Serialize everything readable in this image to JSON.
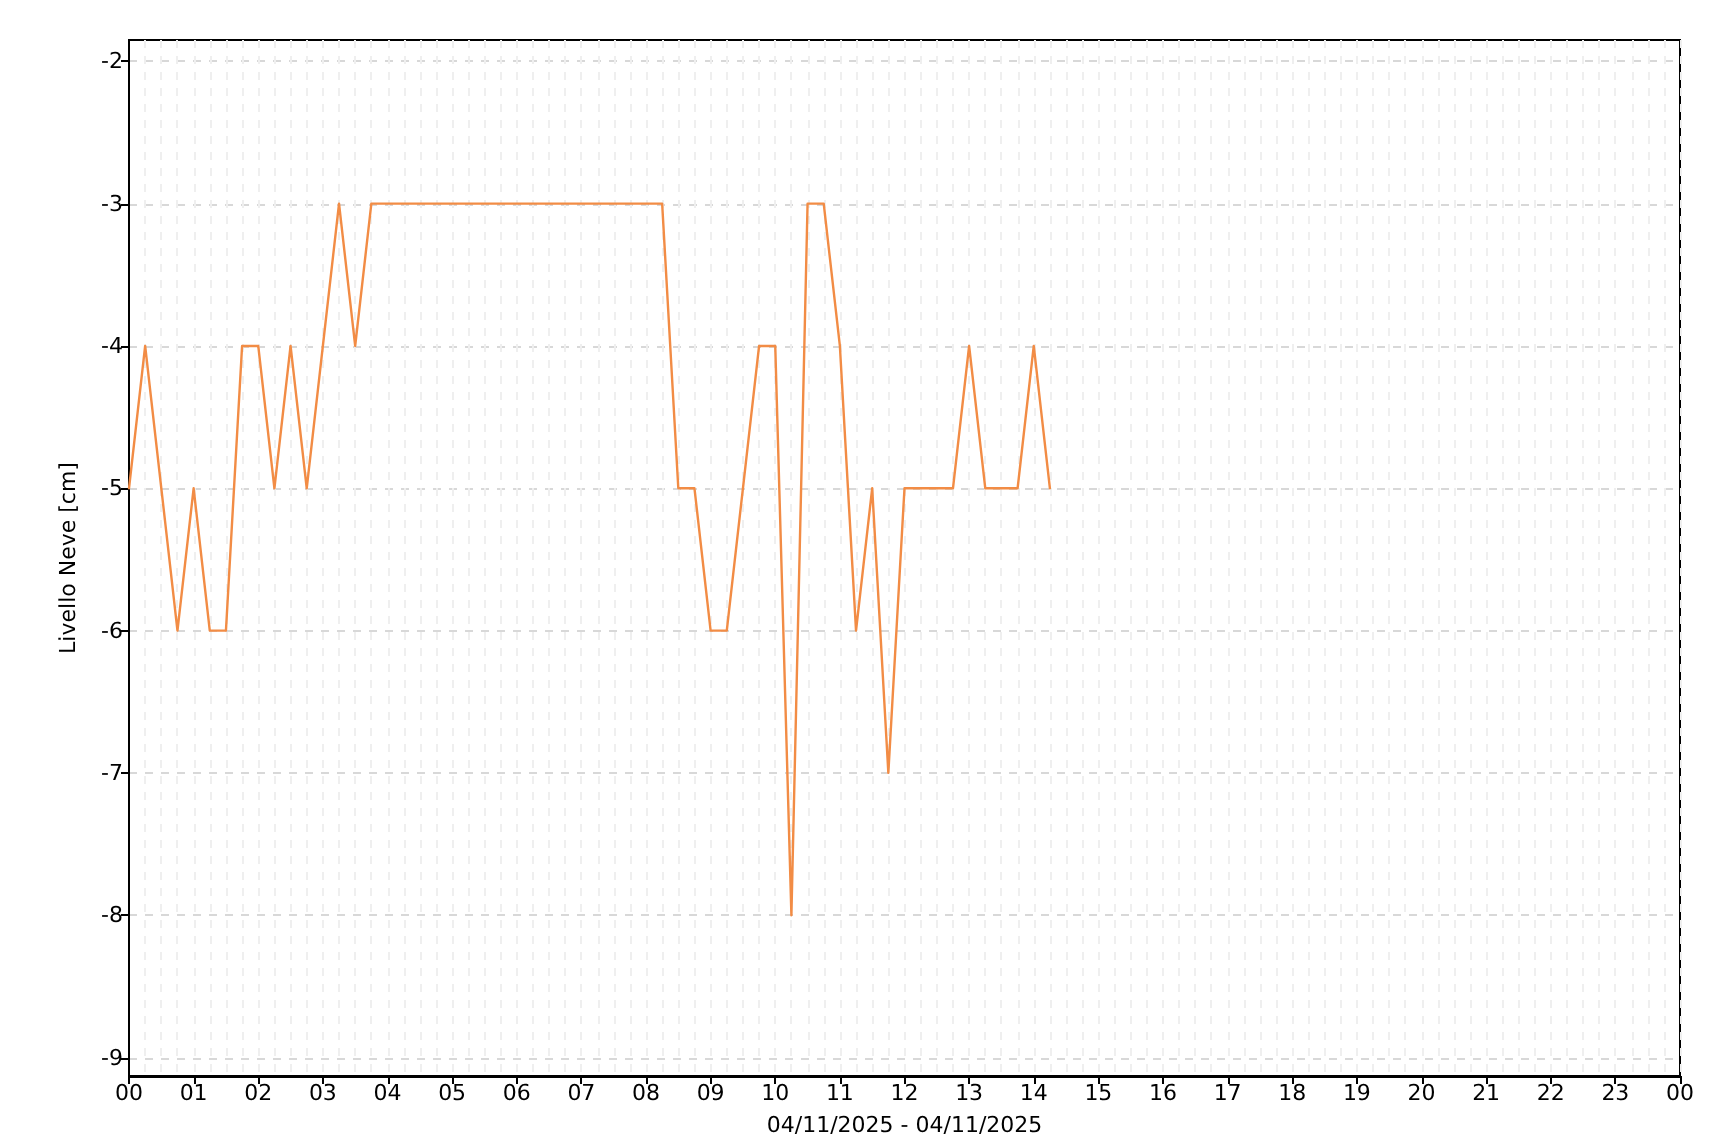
{
  "chart_data": {
    "type": "line",
    "xlabel": "04/11/2025 - 04/11/2025",
    "ylabel": "Livello Neve [cm]",
    "x": [
      0,
      0.25,
      0.5,
      0.75,
      1,
      1.25,
      1.5,
      1.75,
      2,
      2.25,
      2.5,
      2.75,
      3,
      3.25,
      3.5,
      3.75,
      4,
      4.25,
      4.5,
      4.75,
      5,
      5.25,
      5.5,
      5.75,
      6,
      6.25,
      6.5,
      6.75,
      7,
      7.25,
      7.5,
      7.75,
      8,
      8.25,
      8.5,
      8.75,
      9,
      9.25,
      9.5,
      9.75,
      10,
      10.25,
      10.5,
      10.75,
      11,
      11.25,
      11.5,
      11.75,
      12,
      12.25,
      12.5,
      12.75,
      13,
      13.25,
      13.5,
      13.75,
      14,
      14.25
    ],
    "series": [
      {
        "color": "#f28c45",
        "values": [
          -5,
          -4,
          -5,
          -6,
          -5,
          -6,
          -6,
          -4,
          -4,
          -5,
          -4,
          -5,
          -4,
          -3,
          -4,
          -3,
          -3,
          -3,
          -3,
          -3,
          -3,
          -3,
          -3,
          -3,
          -3,
          -3,
          -3,
          -3,
          -3,
          -3,
          -3,
          -3,
          -3,
          -3,
          -5,
          -5,
          -6,
          -6,
          -5,
          -4,
          -4,
          -8,
          -3,
          -3,
          -4,
          -6,
          -5,
          -7,
          -5,
          -5,
          -5,
          -5,
          -4,
          -5,
          -5,
          -5,
          -4,
          -5
        ]
      }
    ],
    "xlim": [
      0,
      24
    ],
    "xticks": [
      {
        "value": 0,
        "label": "00"
      },
      {
        "value": 1,
        "label": "01"
      },
      {
        "value": 2,
        "label": "02"
      },
      {
        "value": 3,
        "label": "03"
      },
      {
        "value": 4,
        "label": "04"
      },
      {
        "value": 5,
        "label": "05"
      },
      {
        "value": 6,
        "label": "06"
      },
      {
        "value": 7,
        "label": "07"
      },
      {
        "value": 8,
        "label": "08"
      },
      {
        "value": 9,
        "label": "09"
      },
      {
        "value": 10,
        "label": "10"
      },
      {
        "value": 11,
        "label": "11"
      },
      {
        "value": 12,
        "label": "12"
      },
      {
        "value": 13,
        "label": "13"
      },
      {
        "value": 14,
        "label": "14"
      },
      {
        "value": 15,
        "label": "15"
      },
      {
        "value": 16,
        "label": "16"
      },
      {
        "value": 17,
        "label": "17"
      },
      {
        "value": 18,
        "label": "18"
      },
      {
        "value": 19,
        "label": "19"
      },
      {
        "value": 20,
        "label": "20"
      },
      {
        "value": 21,
        "label": "21"
      },
      {
        "value": 22,
        "label": "22"
      },
      {
        "value": 23,
        "label": "23"
      },
      {
        "value": 24,
        "label": "00"
      }
    ],
    "ylim": [
      -9.13,
      -1.85
    ],
    "yticks": [
      -9,
      -8,
      -7,
      -6,
      -5,
      -4,
      -3,
      -2
    ],
    "grid": true,
    "marker": "none",
    "line_style": "solid"
  }
}
